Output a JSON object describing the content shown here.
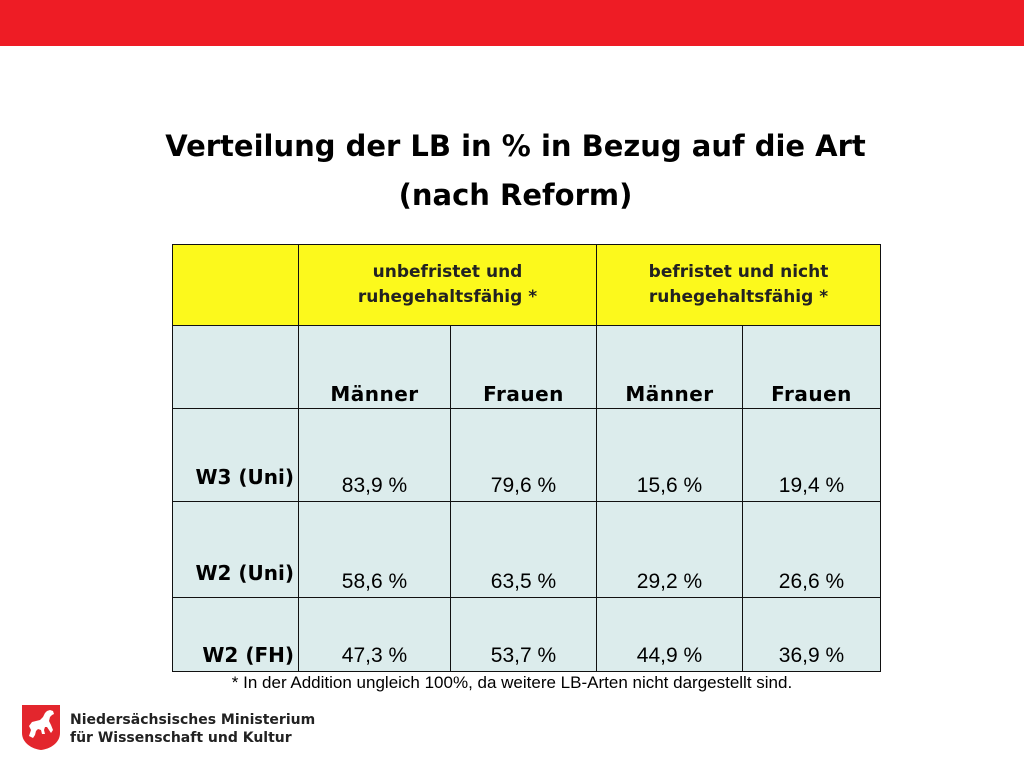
{
  "title": {
    "line1": "Verteilung der LB in % in Bezug auf die Art",
    "line2": "(nach Reform)"
  },
  "table": {
    "group_headers": {
      "unbefristet": {
        "line1": "unbefristet und",
        "line2": "ruhegehaltsfähig *"
      },
      "befristet": {
        "line1": "befristet und nicht",
        "line2": "ruhegehaltsfähig *"
      }
    },
    "sub_headers": [
      "Männer",
      "Frauen",
      "Männer",
      "Frauen"
    ],
    "rows": [
      {
        "label": "W3 (Uni)",
        "values": [
          "83,9 %",
          "79,6 %",
          "15,6 %",
          "19,4 %"
        ]
      },
      {
        "label": "W2 (Uni)",
        "values": [
          "58,6 %",
          "63,5 %",
          "29,2 %",
          "26,6 %"
        ]
      },
      {
        "label": "W2 (FH)",
        "values": [
          "47,3 %",
          "53,7 %",
          "44,9 %",
          "36,9 %"
        ]
      }
    ]
  },
  "footnote": "* In der Addition ungleich 100%, da weitere LB-Arten nicht dargestellt sind.",
  "footer": {
    "ministry_line1": "Niedersächsisches Ministerium",
    "ministry_line2": "für Wissenschaft und Kultur",
    "logo_icon": "lower-saxony-horse-icon"
  },
  "colors": {
    "top_bar": "#ee1c25",
    "header_yellow": "#fcf91c",
    "cell_bg": "#dcecec"
  }
}
